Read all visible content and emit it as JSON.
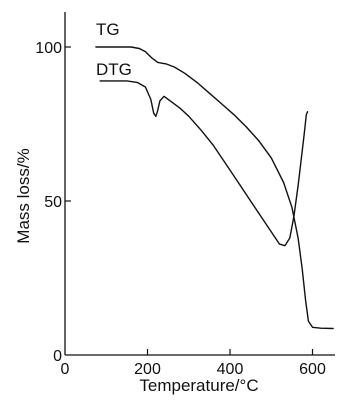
{
  "chart_data": {
    "type": "line",
    "title": "",
    "xlabel": "Temperature/°C",
    "ylabel": "Mass loss/%",
    "xlim": [
      0,
      700
    ],
    "ylim": [
      0,
      110
    ],
    "x_ticks": [
      0,
      200,
      400,
      600
    ],
    "y_ticks": [
      0,
      50,
      100
    ],
    "grid": false,
    "legend": "none",
    "series": [
      {
        "name": "TG",
        "points": [
          [
            75,
            100
          ],
          [
            100,
            100
          ],
          [
            130,
            100
          ],
          [
            160,
            100
          ],
          [
            180,
            99.5
          ],
          [
            195,
            98.5
          ],
          [
            210,
            96.5
          ],
          [
            225,
            95
          ],
          [
            245,
            94.5
          ],
          [
            265,
            93.5
          ],
          [
            290,
            91.5
          ],
          [
            320,
            88.5
          ],
          [
            350,
            85
          ],
          [
            380,
            81.5
          ],
          [
            410,
            78
          ],
          [
            440,
            74
          ],
          [
            470,
            69.5
          ],
          [
            500,
            64
          ],
          [
            530,
            56
          ],
          [
            550,
            48
          ],
          [
            565,
            38
          ],
          [
            575,
            28
          ],
          [
            583,
            18
          ],
          [
            590,
            11
          ],
          [
            600,
            9
          ],
          [
            620,
            8.7
          ],
          [
            650,
            8.6
          ]
        ]
      },
      {
        "name": "DTG",
        "points": [
          [
            85,
            89
          ],
          [
            120,
            89
          ],
          [
            150,
            89
          ],
          [
            175,
            88.5
          ],
          [
            195,
            87
          ],
          [
            208,
            83
          ],
          [
            215,
            78.5
          ],
          [
            220,
            77.5
          ],
          [
            224,
            79
          ],
          [
            230,
            82.5
          ],
          [
            240,
            84
          ],
          [
            260,
            82
          ],
          [
            280,
            80
          ],
          [
            300,
            77.5
          ],
          [
            330,
            73
          ],
          [
            360,
            68
          ],
          [
            390,
            62
          ],
          [
            420,
            56
          ],
          [
            450,
            50
          ],
          [
            480,
            44
          ],
          [
            505,
            39
          ],
          [
            520,
            36
          ],
          [
            533,
            35.5
          ],
          [
            545,
            38
          ],
          [
            555,
            45
          ],
          [
            565,
            55
          ],
          [
            573,
            64
          ],
          [
            580,
            72
          ],
          [
            585,
            78
          ],
          [
            588,
            79
          ]
        ]
      }
    ]
  }
}
